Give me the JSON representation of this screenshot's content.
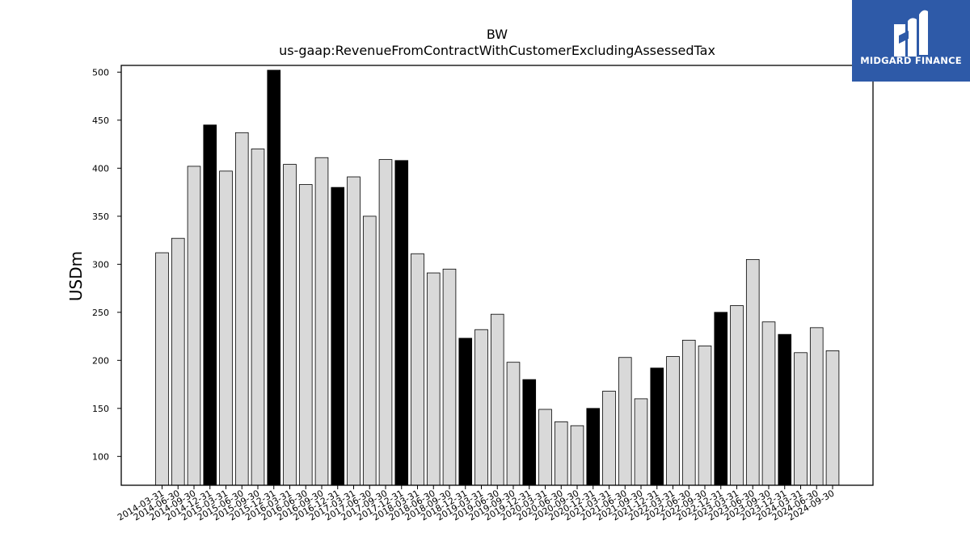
{
  "chart_data": {
    "type": "bar",
    "title": "BW",
    "subtitle": "us-gaap:RevenueFromContractWithCustomerExcludingAssessedTax",
    "xlabel": "",
    "ylabel": "USDm",
    "ylim": [
      70,
      507
    ],
    "yticks": [
      100,
      150,
      200,
      250,
      300,
      350,
      400,
      450,
      500
    ],
    "grid": false,
    "colors": {
      "quarter": "#d9d9d9",
      "fiscal_year_end": "#000000",
      "edge": "#000000"
    },
    "categories": [
      "2014-03-31",
      "2014-06-30",
      "2014-09-30",
      "2014-12-31",
      "2015-03-31",
      "2015-06-30",
      "2015-09-30",
      "2015-12-31",
      "2016-03-31",
      "2016-06-30",
      "2016-09-30",
      "2016-12-31",
      "2017-03-31",
      "2017-06-30",
      "2017-09-30",
      "2017-12-31",
      "2018-03-31",
      "2018-06-30",
      "2018-09-30",
      "2018-12-31",
      "2019-03-31",
      "2019-06-30",
      "2019-09-30",
      "2019-12-31",
      "2020-03-31",
      "2020-06-30",
      "2020-09-30",
      "2020-12-31",
      "2021-03-31",
      "2021-06-30",
      "2021-09-30",
      "2021-12-31",
      "2022-03-31",
      "2022-06-30",
      "2022-09-30",
      "2022-12-31",
      "2023-03-31",
      "2023-06-30",
      "2023-09-30",
      "2023-12-31",
      "2024-03-31",
      "2024-06-30",
      "2024-09-30"
    ],
    "values": [
      312,
      327,
      402,
      445,
      397,
      437,
      420,
      502,
      404,
      383,
      411,
      380,
      391,
      350,
      409,
      408,
      311,
      291,
      295,
      223,
      232,
      248,
      198,
      180,
      149,
      136,
      132,
      150,
      168,
      203,
      160,
      192,
      204,
      221,
      215,
      250,
      257,
      305,
      240,
      227,
      208,
      234,
      210
    ],
    "highlight": [
      false,
      false,
      false,
      true,
      false,
      false,
      false,
      true,
      false,
      false,
      false,
      true,
      false,
      false,
      false,
      true,
      false,
      false,
      false,
      true,
      false,
      false,
      false,
      true,
      false,
      false,
      false,
      true,
      false,
      false,
      false,
      true,
      false,
      false,
      false,
      true,
      false,
      false,
      false,
      true,
      false,
      false,
      false
    ]
  },
  "logo": {
    "text": "MIDGARD FINANCE"
  }
}
